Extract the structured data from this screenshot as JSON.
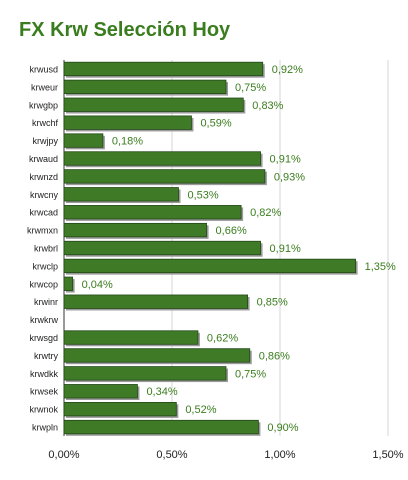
{
  "chart_data": {
    "type": "bar",
    "orientation": "horizontal",
    "title": "FX Krw Selección Hoy",
    "categories": [
      "krwusd",
      "krweur",
      "krwgbp",
      "krwchf",
      "krwjpy",
      "krwaud",
      "krwnzd",
      "krwcny",
      "krwcad",
      "krwmxn",
      "krwbrl",
      "krwclp",
      "krwcop",
      "krwinr",
      "krwkrw",
      "krwsgd",
      "krwtry",
      "krwdkk",
      "krwsek",
      "krwnok",
      "krwpln"
    ],
    "values": [
      0.92,
      0.75,
      0.83,
      0.59,
      0.18,
      0.91,
      0.93,
      0.53,
      0.82,
      0.66,
      0.91,
      1.35,
      0.04,
      0.85,
      0.0,
      0.62,
      0.86,
      0.75,
      0.34,
      0.52,
      0.9
    ],
    "data_labels": [
      "0,92%",
      "0,75%",
      "0,83%",
      "0,59%",
      "0,18%",
      "0,91%",
      "0,93%",
      "0,53%",
      "0,82%",
      "0,66%",
      "0,91%",
      "1,35%",
      "0,04%",
      "0,85%",
      "",
      "0,62%",
      "0,86%",
      "0,75%",
      "0,34%",
      "0,52%",
      "0,90%"
    ],
    "xlim": [
      0,
      1.5
    ],
    "xticks": [
      0,
      0.5,
      1.0,
      1.5
    ],
    "xtick_labels": [
      "0,00%",
      "0,50%",
      "1,00%",
      "1,50%"
    ],
    "xlabel": "",
    "ylabel": "",
    "grid": "vertical",
    "legend": "none",
    "colors": {
      "bar": "#3f7a26",
      "bar_edge": "#24481a",
      "bar_shadow": "#9a9a9a",
      "title": "#3a7d1e",
      "data_label": "#3a7d1e",
      "grid": "#d6d6d6"
    }
  }
}
